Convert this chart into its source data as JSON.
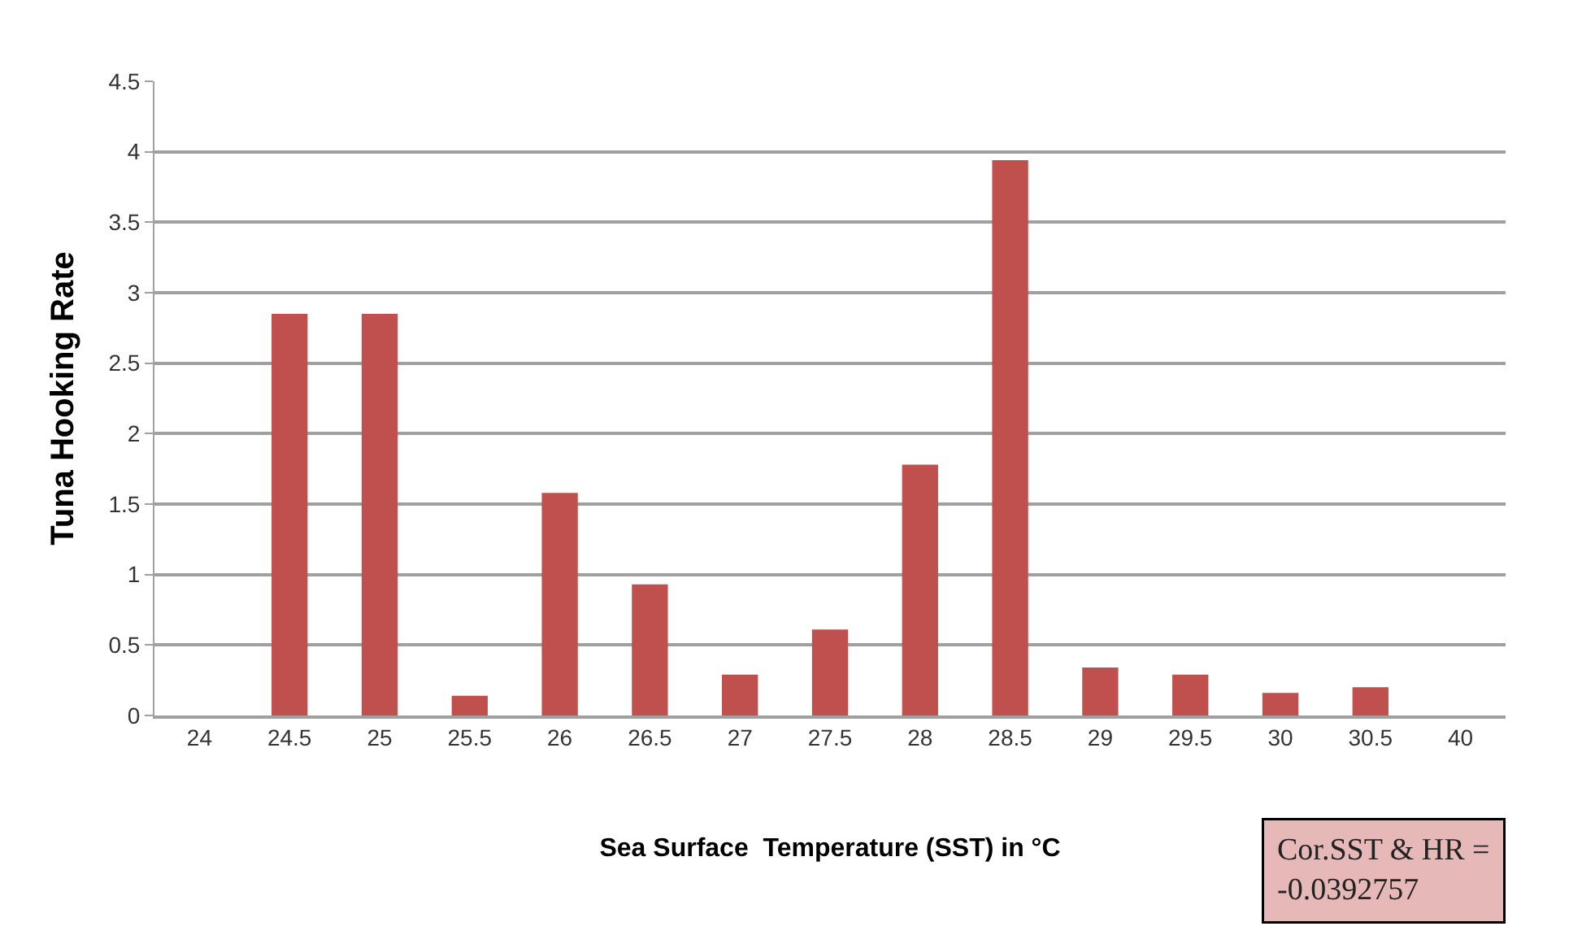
{
  "chart_data": {
    "type": "bar",
    "xlabel": "Sea Surface  Temperature (SST) in °C",
    "ylabel": "Tuna Hooking Rate",
    "categories": [
      "24",
      "24.5",
      "25",
      "25.5",
      "26",
      "26.5",
      "27",
      "27.5",
      "28",
      "28.5",
      "29",
      "29.5",
      "30",
      "30.5",
      "40"
    ],
    "values": [
      0,
      2.85,
      2.85,
      0.14,
      1.58,
      0.93,
      0.29,
      0.61,
      1.78,
      3.94,
      0.34,
      0.29,
      0.16,
      0.2,
      0
    ],
    "color": "#c0504d",
    "ylim": [
      0,
      4.5
    ],
    "yticks": [
      0,
      0.5,
      1,
      1.5,
      2,
      2.5,
      3,
      3.5,
      4,
      4.5
    ],
    "grid": "y",
    "legend": false,
    "annotations": [
      "Cor.SST & HR = -0.0392757"
    ]
  }
}
